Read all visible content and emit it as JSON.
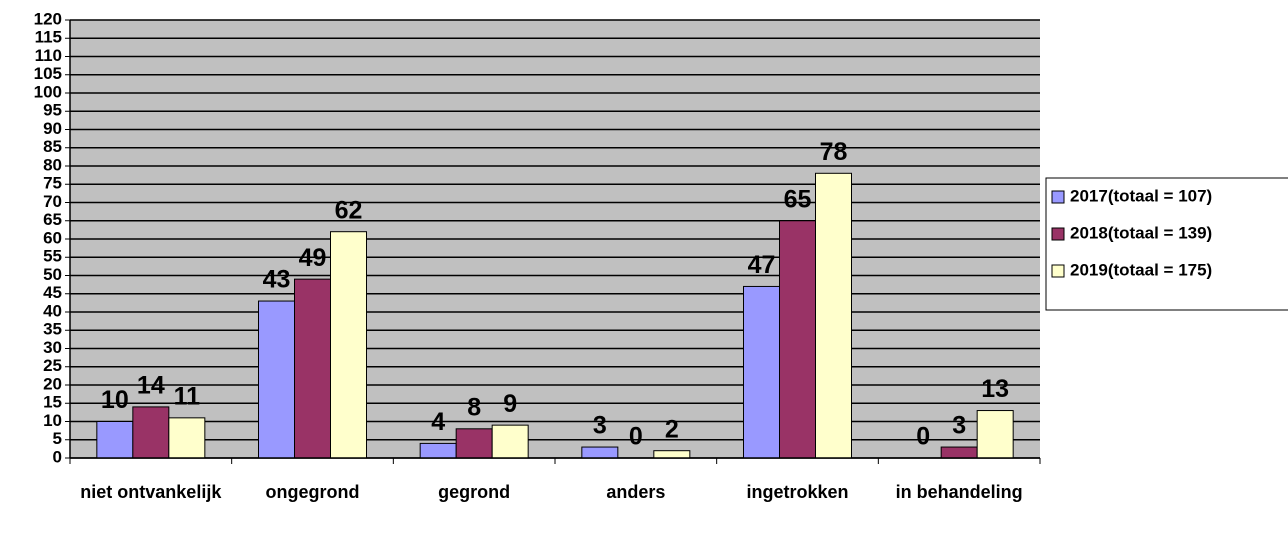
{
  "chart_data": {
    "type": "bar",
    "categories": [
      "niet ontvankelijk",
      "ongegrond",
      "gegrond",
      "anders",
      "ingetrokken",
      "in behandeling"
    ],
    "series": [
      {
        "name": "2017(totaal = 107)",
        "color": "#9999ff",
        "values": [
          10,
          43,
          4,
          3,
          47,
          0
        ]
      },
      {
        "name": "2018(totaal = 139)",
        "color": "#993366",
        "values": [
          14,
          49,
          8,
          0,
          65,
          3
        ]
      },
      {
        "name": "2019(totaal = 175)",
        "color": "#ffffcc",
        "values": [
          11,
          62,
          9,
          2,
          78,
          13
        ]
      }
    ],
    "ylim": [
      0,
      120
    ],
    "yticks": [
      0,
      5,
      10,
      15,
      20,
      25,
      30,
      35,
      40,
      45,
      50,
      55,
      60,
      65,
      70,
      75,
      80,
      85,
      90,
      95,
      100,
      105,
      110,
      115,
      120
    ],
    "grid": true,
    "legend": "right"
  }
}
